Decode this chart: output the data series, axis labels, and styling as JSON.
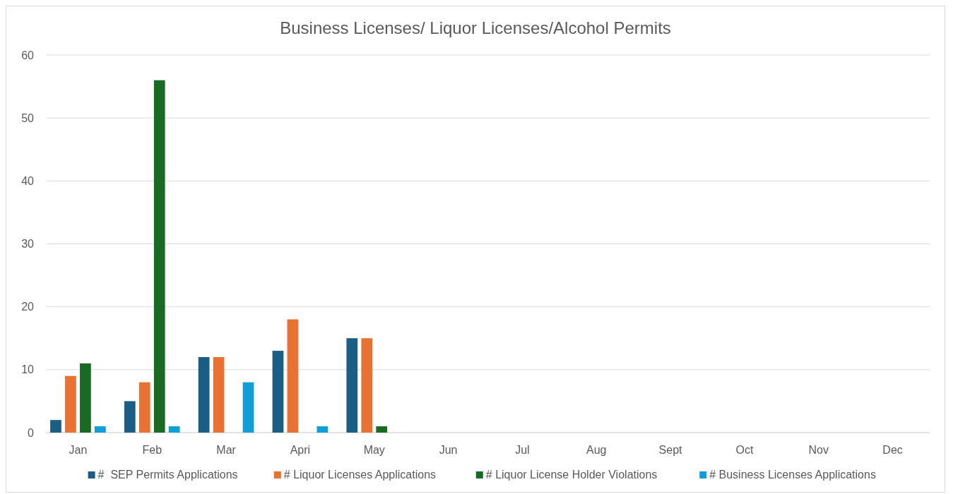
{
  "chart_data": {
    "type": "bar",
    "title": "Business Licenses/ Liquor Licenses/Alcohol Permits",
    "categories": [
      "Jan",
      "Feb",
      "Mar",
      "Apri",
      "May",
      "Jun",
      "Jul",
      "Aug",
      "Sept",
      "Oct",
      "Nov",
      "Dec"
    ],
    "series": [
      {
        "name": "#  SEP Permits Applications",
        "color": "#1a5e86",
        "values": [
          2,
          5,
          12,
          13,
          15,
          null,
          null,
          null,
          null,
          null,
          null,
          null
        ]
      },
      {
        "name": "# Liquor Licenses Applications",
        "color": "#e97132",
        "values": [
          9,
          8,
          12,
          18,
          15,
          null,
          null,
          null,
          null,
          null,
          null,
          null
        ]
      },
      {
        "name": "# Liquor License Holder Violations",
        "color": "#196b24",
        "values": [
          11,
          56,
          null,
          null,
          1,
          null,
          null,
          null,
          null,
          null,
          null,
          null
        ]
      },
      {
        "name": "# Business Licenses Applications",
        "color": "#0f9ed5",
        "values": [
          1,
          1,
          8,
          1,
          null,
          null,
          null,
          null,
          null,
          null,
          null,
          null
        ]
      }
    ],
    "ylim": [
      0,
      60
    ],
    "yticks": [
      0,
      10,
      20,
      30,
      40,
      50,
      60
    ],
    "grid": "y",
    "legend": "bottom"
  }
}
